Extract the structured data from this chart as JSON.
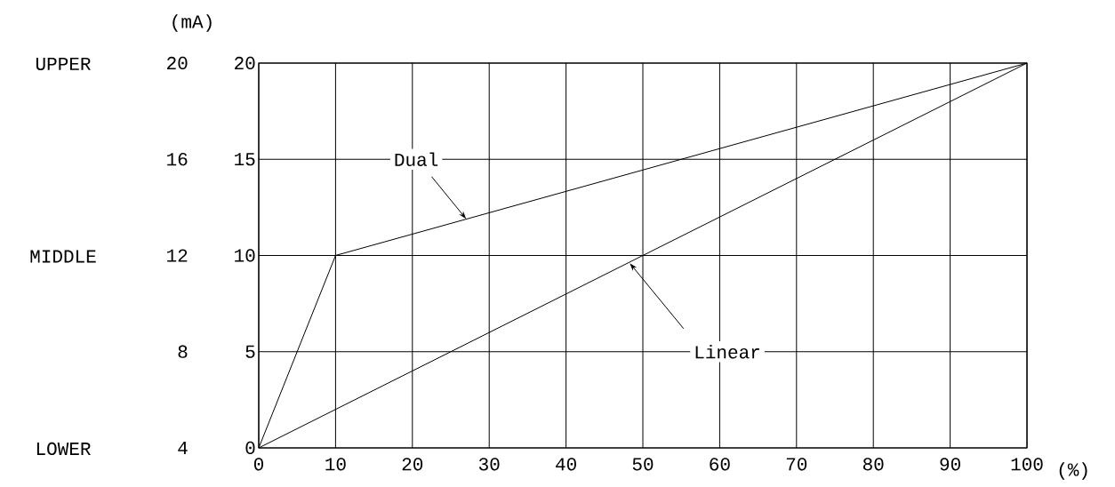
{
  "chart_data": {
    "type": "line",
    "xlabel": "(%)",
    "y2label": "(mA)",
    "xlim": [
      0,
      100
    ],
    "xticks": [
      0,
      10,
      20,
      30,
      40,
      50,
      60,
      70,
      80,
      90,
      100
    ],
    "ylim": [
      0,
      20
    ],
    "yticks": [
      0,
      5,
      10,
      15,
      20
    ],
    "y2lim": [
      4,
      20
    ],
    "y2ticks": [
      4,
      8,
      12,
      16,
      20
    ],
    "annotations": [
      {
        "text": "Dual",
        "x": 27,
        "y": 11.9
      },
      {
        "text": "Linear",
        "x": 48.3,
        "y": 9.6
      },
      "UPPER",
      "MIDDLE",
      "LOWER"
    ],
    "grid": true,
    "line_style": "solid",
    "marker": "none",
    "series": [
      {
        "color": "#000000",
        "x": [
          0,
          10,
          100
        ],
        "values": [
          0,
          10,
          20
        ]
      },
      {
        "color": "#000000",
        "x": [
          0,
          100
        ],
        "values": [
          0,
          20
        ]
      }
    ]
  }
}
